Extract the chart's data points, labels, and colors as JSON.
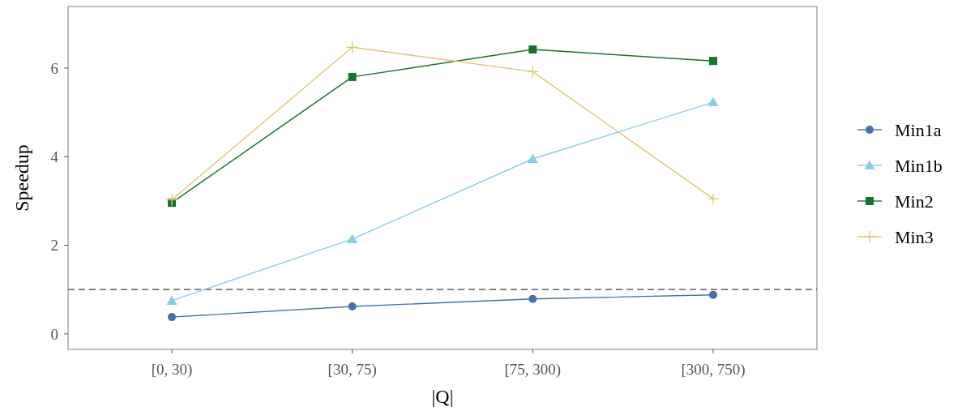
{
  "chart_data": {
    "type": "line",
    "xlabel": "|Q|",
    "ylabel": "Speedup",
    "categories": [
      "[0, 30)",
      "[30, 75)",
      "[75, 300)",
      "[300, 750)"
    ],
    "ylim": [
      -0.35,
      7.39
    ],
    "yticks": [
      0,
      2,
      4,
      6
    ],
    "grid": false,
    "legend": "right",
    "ref_lines": [
      {
        "axis": "y",
        "value": 1,
        "line_style": "dashed",
        "color": "#404040"
      }
    ],
    "series": [
      {
        "name": "Min1a",
        "color": "#4472a8",
        "marker": "circle",
        "values": [
          0.38,
          0.62,
          0.79,
          0.88
        ]
      },
      {
        "name": "Min1b",
        "color": "#87ceeb",
        "marker": "triangle",
        "values": [
          0.75,
          2.14,
          3.95,
          5.23
        ]
      },
      {
        "name": "Min2",
        "color": "#16732f",
        "marker": "square",
        "values": [
          2.96,
          5.8,
          6.42,
          6.16
        ]
      },
      {
        "name": "Min3",
        "color": "#dfc66b",
        "marker": "cross",
        "values": [
          3.03,
          6.47,
          5.92,
          3.05
        ]
      }
    ]
  }
}
